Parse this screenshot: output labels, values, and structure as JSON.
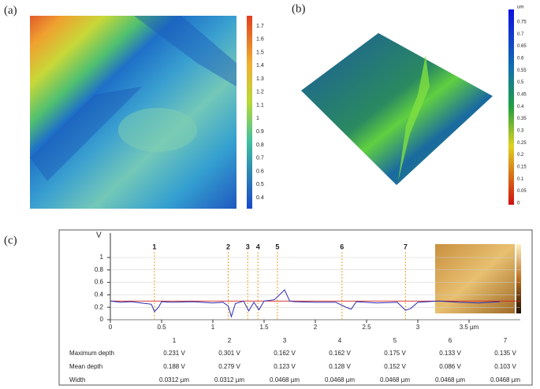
{
  "panels": {
    "a": {
      "label": "(a)",
      "colorbar": [
        1.7,
        1.6,
        1.5,
        1.4,
        1.3,
        1.2,
        1.1,
        1,
        0.9,
        0.8,
        0.7,
        0.6,
        0.5,
        0.4
      ]
    },
    "b": {
      "label": "(b)",
      "unit": "um",
      "colorbar": [
        0.75,
        0.7,
        0.65,
        0.6,
        0.55,
        0.5,
        0.45,
        0.4,
        0.35,
        0.3,
        0.25,
        0.2,
        0.15,
        0.1,
        0.05,
        0
      ]
    },
    "c": {
      "label": "(c)"
    }
  },
  "chart_data": {
    "type": "line",
    "y_label": "V",
    "x": [
      0,
      0.1,
      0.2,
      0.3,
      0.4,
      0.43,
      0.47,
      0.5,
      0.6,
      0.8,
      1.0,
      1.1,
      1.15,
      1.18,
      1.22,
      1.3,
      1.35,
      1.4,
      1.45,
      1.5,
      1.6,
      1.7,
      1.75,
      1.8,
      2.0,
      2.2,
      2.3,
      2.35,
      2.4,
      2.6,
      2.8,
      2.88,
      2.93,
      3.0,
      3.2,
      3.4,
      3.6,
      3.8
    ],
    "series": [
      {
        "color": "#2a2ab0",
        "values": [
          0.3,
          0.28,
          0.29,
          0.27,
          0.25,
          0.13,
          0.2,
          0.29,
          0.28,
          0.29,
          0.27,
          0.28,
          0.22,
          0.05,
          0.26,
          0.3,
          0.14,
          0.28,
          0.16,
          0.3,
          0.32,
          0.48,
          0.3,
          0.29,
          0.28,
          0.28,
          0.2,
          0.17,
          0.29,
          0.27,
          0.28,
          0.15,
          0.18,
          0.28,
          0.3,
          0.28,
          0.27,
          0.29
        ]
      }
    ],
    "reference_line": 0.3,
    "xlim": [
      0,
      3.9
    ],
    "ylim": [
      0,
      1
    ],
    "xticks": [
      0,
      0.5,
      1,
      1.5,
      2,
      2.5,
      3,
      {
        "value": 3.5,
        "label": "3.5 µm"
      }
    ],
    "yticks": [
      0,
      0.2,
      0.4,
      0.6,
      0.8,
      1
    ],
    "markers": [
      {
        "label": "1",
        "x": 0.43
      },
      {
        "label": "2",
        "x": 1.15
      },
      {
        "label": "3",
        "x": 1.34
      },
      {
        "label": "4",
        "x": 1.44
      },
      {
        "label": "5",
        "x": 1.63
      },
      {
        "label": "6",
        "x": 2.26
      },
      {
        "label": "7",
        "x": 2.88
      }
    ]
  },
  "table": {
    "columns": [
      "1",
      "2",
      "3",
      "4",
      "5",
      "6",
      "7"
    ],
    "rows": [
      {
        "name": "Maximum depth",
        "cells": [
          "0.231 V",
          "0.301 V",
          "0.162 V",
          "0.162 V",
          "0.175 V",
          "0.133 V",
          "0.135 V"
        ]
      },
      {
        "name": "Mean depth",
        "cells": [
          "0.188 V",
          "0.279 V",
          "0.123 V",
          "0.128 V",
          "0.152 V",
          "0.086 V",
          "0.103 V"
        ]
      },
      {
        "name": "Width",
        "cells": [
          "0.0312 µm",
          "0.0312 µm",
          "0.0468 µm",
          "0.0468 µm",
          "0.0468 µm",
          "0.0468 µm",
          "0.0468 µm"
        ]
      }
    ]
  }
}
